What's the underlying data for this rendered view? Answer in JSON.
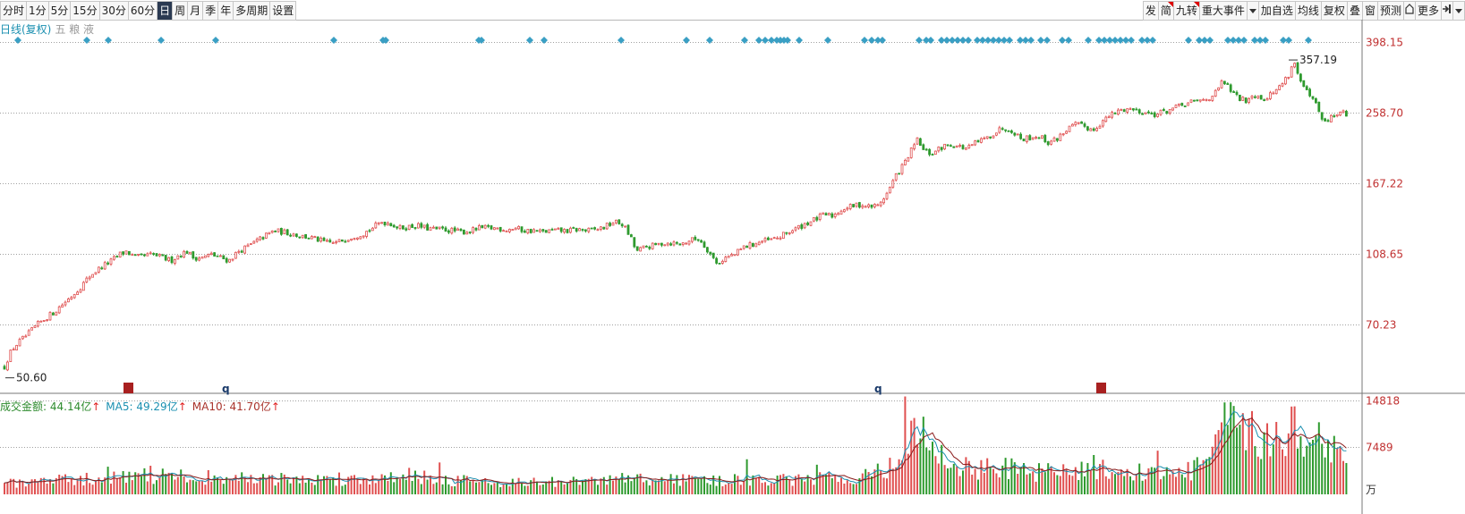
{
  "toolbar": {
    "left_items": [
      "分时",
      "1分",
      "5分",
      "15分",
      "30分",
      "60分",
      "日",
      "周",
      "月",
      "季",
      "年",
      "多周期",
      "设置"
    ],
    "active_index": 6,
    "right_items": [
      {
        "label": "发",
        "flag": false
      },
      {
        "label": "简",
        "flag": true
      },
      {
        "label": "九转",
        "flag": true
      },
      {
        "label": "重大事件",
        "flag": false
      },
      {
        "label": "加自选",
        "flag": false
      },
      {
        "label": "均线",
        "flag": false
      },
      {
        "label": "复权",
        "flag": false
      },
      {
        "label": "叠",
        "flag": false
      },
      {
        "label": "窗",
        "flag": false
      },
      {
        "label": "预测",
        "flag": false
      },
      {
        "label": "更多",
        "flag": false
      }
    ],
    "dropdown_icon": "chevron-down-icon",
    "home_icon": "house-icon",
    "end_icon": "jump-to-end-icon"
  },
  "legend": {
    "title": "日线(复权)",
    "subtitle": "五 粮 液"
  },
  "volume_legend": {
    "total_label": "成交金额: 44.14亿",
    "ma5_label": "MA5: 49.29亿",
    "ma10_label": "MA10: 41.70亿",
    "arrow": "↑"
  },
  "colors": {
    "up": "#e05050",
    "down": "#2e9a2e",
    "signal": "#3a9fc4",
    "grid": "#a0a0a0",
    "axis_label": "#c03030",
    "ma5": "#1a8fb0",
    "ma10": "#8a1a1a"
  },
  "chart_data": [
    {
      "type": "candlestick",
      "scale": "log",
      "y_ticks": [
        398.15,
        258.7,
        167.22,
        108.65,
        70.23
      ],
      "ylim": [
        46,
        410
      ],
      "low_label": "50.60",
      "high_label": "357.19",
      "price_path": [
        [
          0,
          50.6
        ],
        [
          5,
          55
        ],
        [
          12,
          60
        ],
        [
          20,
          63
        ],
        [
          30,
          66
        ],
        [
          40,
          70
        ],
        [
          50,
          73
        ],
        [
          60,
          76
        ],
        [
          70,
          80
        ],
        [
          80,
          84
        ],
        [
          90,
          89
        ],
        [
          100,
          95
        ],
        [
          112,
          100
        ],
        [
          124,
          104
        ],
        [
          132,
          108
        ],
        [
          140,
          110
        ],
        [
          150,
          106
        ],
        [
          160,
          107
        ],
        [
          170,
          108
        ],
        [
          180,
          106
        ],
        [
          190,
          104
        ],
        [
          200,
          108
        ],
        [
          208,
          110
        ],
        [
          215,
          106
        ],
        [
          225,
          106
        ],
        [
          235,
          108
        ],
        [
          245,
          106
        ],
        [
          255,
          104
        ],
        [
          265,
          110
        ],
        [
          275,
          113
        ],
        [
          285,
          117
        ],
        [
          295,
          121
        ],
        [
          305,
          125
        ],
        [
          315,
          124
        ],
        [
          325,
          123
        ],
        [
          335,
          121
        ],
        [
          345,
          120
        ],
        [
          355,
          118
        ],
        [
          365,
          116
        ],
        [
          375,
          116
        ],
        [
          385,
          119
        ],
        [
          395,
          121
        ],
        [
          405,
          123
        ],
        [
          415,
          127
        ],
        [
          425,
          132
        ],
        [
          435,
          131
        ],
        [
          445,
          127
        ],
        [
          455,
          128
        ],
        [
          465,
          129
        ],
        [
          475,
          127
        ],
        [
          485,
          126
        ],
        [
          495,
          126
        ],
        [
          505,
          125
        ],
        [
          515,
          124
        ],
        [
          525,
          125
        ],
        [
          535,
          127
        ],
        [
          545,
          127
        ],
        [
          555,
          127
        ],
        [
          565,
          126
        ],
        [
          575,
          127
        ],
        [
          585,
          125
        ],
        [
          595,
          125
        ],
        [
          605,
          124
        ],
        [
          615,
          125
        ],
        [
          625,
          125
        ],
        [
          635,
          125
        ],
        [
          645,
          126
        ],
        [
          655,
          125
        ],
        [
          665,
          126
        ],
        [
          675,
          128
        ],
        [
          685,
          132
        ],
        [
          695,
          130
        ],
        [
          705,
          118
        ],
        [
          710,
          110
        ],
        [
          720,
          113
        ],
        [
          730,
          114
        ],
        [
          740,
          116
        ],
        [
          750,
          116
        ],
        [
          760,
          115
        ],
        [
          770,
          118
        ],
        [
          780,
          119
        ],
        [
          790,
          111
        ],
        [
          800,
          102
        ],
        [
          810,
          106
        ],
        [
          820,
          108
        ],
        [
          830,
          113
        ],
        [
          840,
          115
        ],
        [
          850,
          117
        ],
        [
          860,
          118
        ],
        [
          870,
          120
        ],
        [
          880,
          124
        ],
        [
          890,
          127
        ],
        [
          900,
          131
        ],
        [
          910,
          134
        ],
        [
          920,
          138
        ],
        [
          930,
          137
        ],
        [
          940,
          143
        ],
        [
          950,
          145
        ],
        [
          960,
          147
        ],
        [
          970,
          145
        ],
        [
          980,
          146
        ],
        [
          990,
          157
        ],
        [
          1000,
          175
        ],
        [
          1010,
          190
        ],
        [
          1020,
          210
        ],
        [
          1025,
          220
        ],
        [
          1030,
          205
        ],
        [
          1040,
          200
        ],
        [
          1050,
          208
        ],
        [
          1060,
          213
        ],
        [
          1070,
          210
        ],
        [
          1080,
          207
        ],
        [
          1090,
          215
        ],
        [
          1100,
          220
        ],
        [
          1110,
          228
        ],
        [
          1120,
          236
        ],
        [
          1130,
          232
        ],
        [
          1140,
          220
        ],
        [
          1150,
          222
        ],
        [
          1160,
          224
        ],
        [
          1170,
          215
        ],
        [
          1180,
          220
        ],
        [
          1190,
          232
        ],
        [
          1200,
          240
        ],
        [
          1210,
          238
        ],
        [
          1220,
          232
        ],
        [
          1230,
          244
        ],
        [
          1240,
          254
        ],
        [
          1250,
          262
        ],
        [
          1260,
          265
        ],
        [
          1270,
          262
        ],
        [
          1280,
          258
        ],
        [
          1290,
          256
        ],
        [
          1300,
          260
        ],
        [
          1310,
          265
        ],
        [
          1320,
          270
        ],
        [
          1330,
          275
        ],
        [
          1340,
          278
        ],
        [
          1350,
          283
        ],
        [
          1360,
          295
        ],
        [
          1365,
          315
        ],
        [
          1370,
          305
        ],
        [
          1380,
          285
        ],
        [
          1390,
          278
        ],
        [
          1400,
          290
        ],
        [
          1410,
          282
        ],
        [
          1420,
          290
        ],
        [
          1430,
          305
        ],
        [
          1440,
          330
        ],
        [
          1445,
          357
        ],
        [
          1450,
          320
        ],
        [
          1460,
          290
        ],
        [
          1470,
          270
        ],
        [
          1478,
          240
        ],
        [
          1485,
          250
        ],
        [
          1495,
          258
        ],
        [
          1505,
          256
        ]
      ]
    },
    {
      "type": "bar",
      "title": "成交金额",
      "y_ticks": [
        14818,
        7489
      ],
      "ylim": [
        0,
        16000
      ],
      "unit_label": "万",
      "volume_path": [
        [
          0,
          1800
        ],
        [
          100,
          2400
        ],
        [
          150,
          3100
        ],
        [
          200,
          2800
        ],
        [
          300,
          2400
        ],
        [
          400,
          2300
        ],
        [
          450,
          3300
        ],
        [
          500,
          2300
        ],
        [
          550,
          2000
        ],
        [
          600,
          1900
        ],
        [
          650,
          2000
        ],
        [
          700,
          2500
        ],
        [
          750,
          2300
        ],
        [
          800,
          2200
        ],
        [
          900,
          2300
        ],
        [
          950,
          2700
        ],
        [
          990,
          3700
        ],
        [
          1005,
          6500
        ],
        [
          1020,
          10000
        ],
        [
          1030,
          9000
        ],
        [
          1040,
          7000
        ],
        [
          1060,
          5200
        ],
        [
          1080,
          4200
        ],
        [
          1110,
          4200
        ],
        [
          1140,
          3800
        ],
        [
          1180,
          3400
        ],
        [
          1220,
          4000
        ],
        [
          1260,
          3600
        ],
        [
          1300,
          3400
        ],
        [
          1330,
          3700
        ],
        [
          1350,
          6000
        ],
        [
          1365,
          10800
        ],
        [
          1380,
          10000
        ],
        [
          1400,
          9000
        ],
        [
          1420,
          9500
        ],
        [
          1440,
          10500
        ],
        [
          1460,
          9500
        ],
        [
          1480,
          8500
        ],
        [
          1500,
          6500
        ],
        [
          1505,
          6000
        ]
      ]
    }
  ]
}
